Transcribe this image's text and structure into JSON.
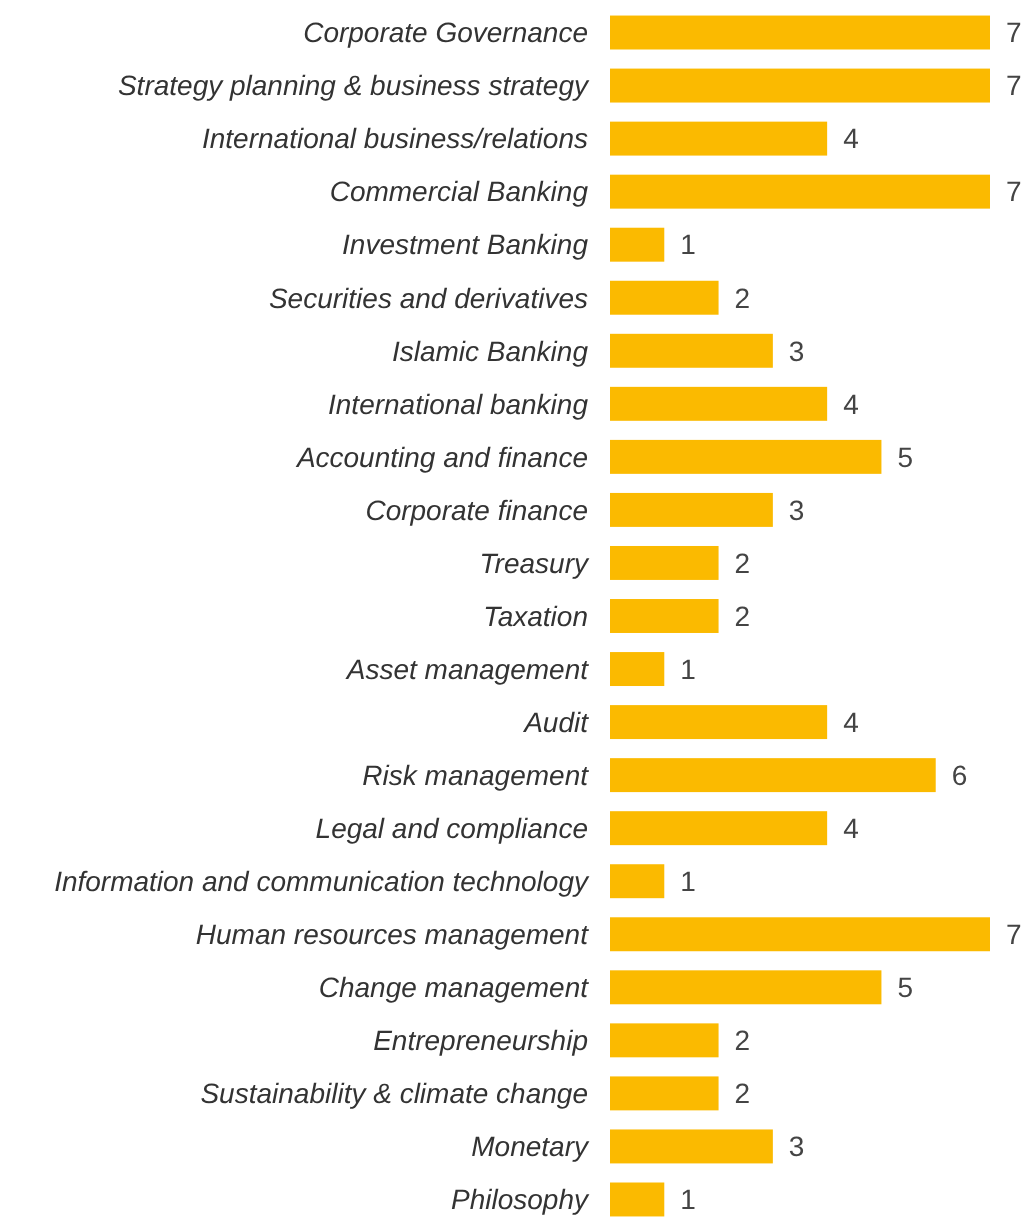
{
  "chart_data": {
    "type": "bar",
    "orientation": "horizontal",
    "categories": [
      "Corporate Governance",
      "Strategy planning & business strategy",
      "International business/relations",
      "Commercial Banking",
      "Investment Banking",
      "Securities and derivatives",
      "Islamic Banking",
      "International banking",
      "Accounting and finance",
      "Corporate finance",
      "Treasury",
      "Taxation",
      "Asset management",
      "Audit",
      "Risk management",
      "Legal and compliance",
      "Information and communication technology",
      "Human resources management",
      "Change management",
      "Entrepreneurship",
      "Sustainability & climate change",
      "Monetary",
      "Philosophy"
    ],
    "values": [
      7,
      7,
      4,
      7,
      1,
      2,
      3,
      4,
      5,
      3,
      2,
      2,
      1,
      4,
      6,
      4,
      1,
      7,
      5,
      2,
      2,
      3,
      1
    ],
    "color": "#fbba00",
    "data_labels": true
  }
}
